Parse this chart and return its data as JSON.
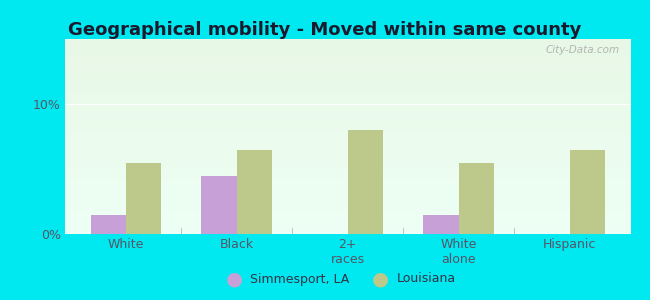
{
  "title": "Geographical mobility - Moved within same county",
  "categories": [
    "White",
    "Black",
    "2+\nraces",
    "White\nalone",
    "Hispanic"
  ],
  "simmesport_values": [
    1.5,
    4.5,
    0.0,
    1.5,
    0.0
  ],
  "louisiana_values": [
    5.5,
    6.5,
    8.0,
    5.5,
    6.5
  ],
  "simmesport_color": "#c8a0d8",
  "louisiana_color": "#bdc98a",
  "background_color": "#00e8f0",
  "ylim": [
    0,
    15
  ],
  "yticks": [
    0,
    10
  ],
  "ytick_labels": [
    "0%",
    "10%"
  ],
  "bar_width": 0.32,
  "legend_labels": [
    "Simmesport, LA",
    "Louisiana"
  ],
  "watermark": "City-Data.com",
  "title_fontsize": 13,
  "tick_fontsize": 9
}
